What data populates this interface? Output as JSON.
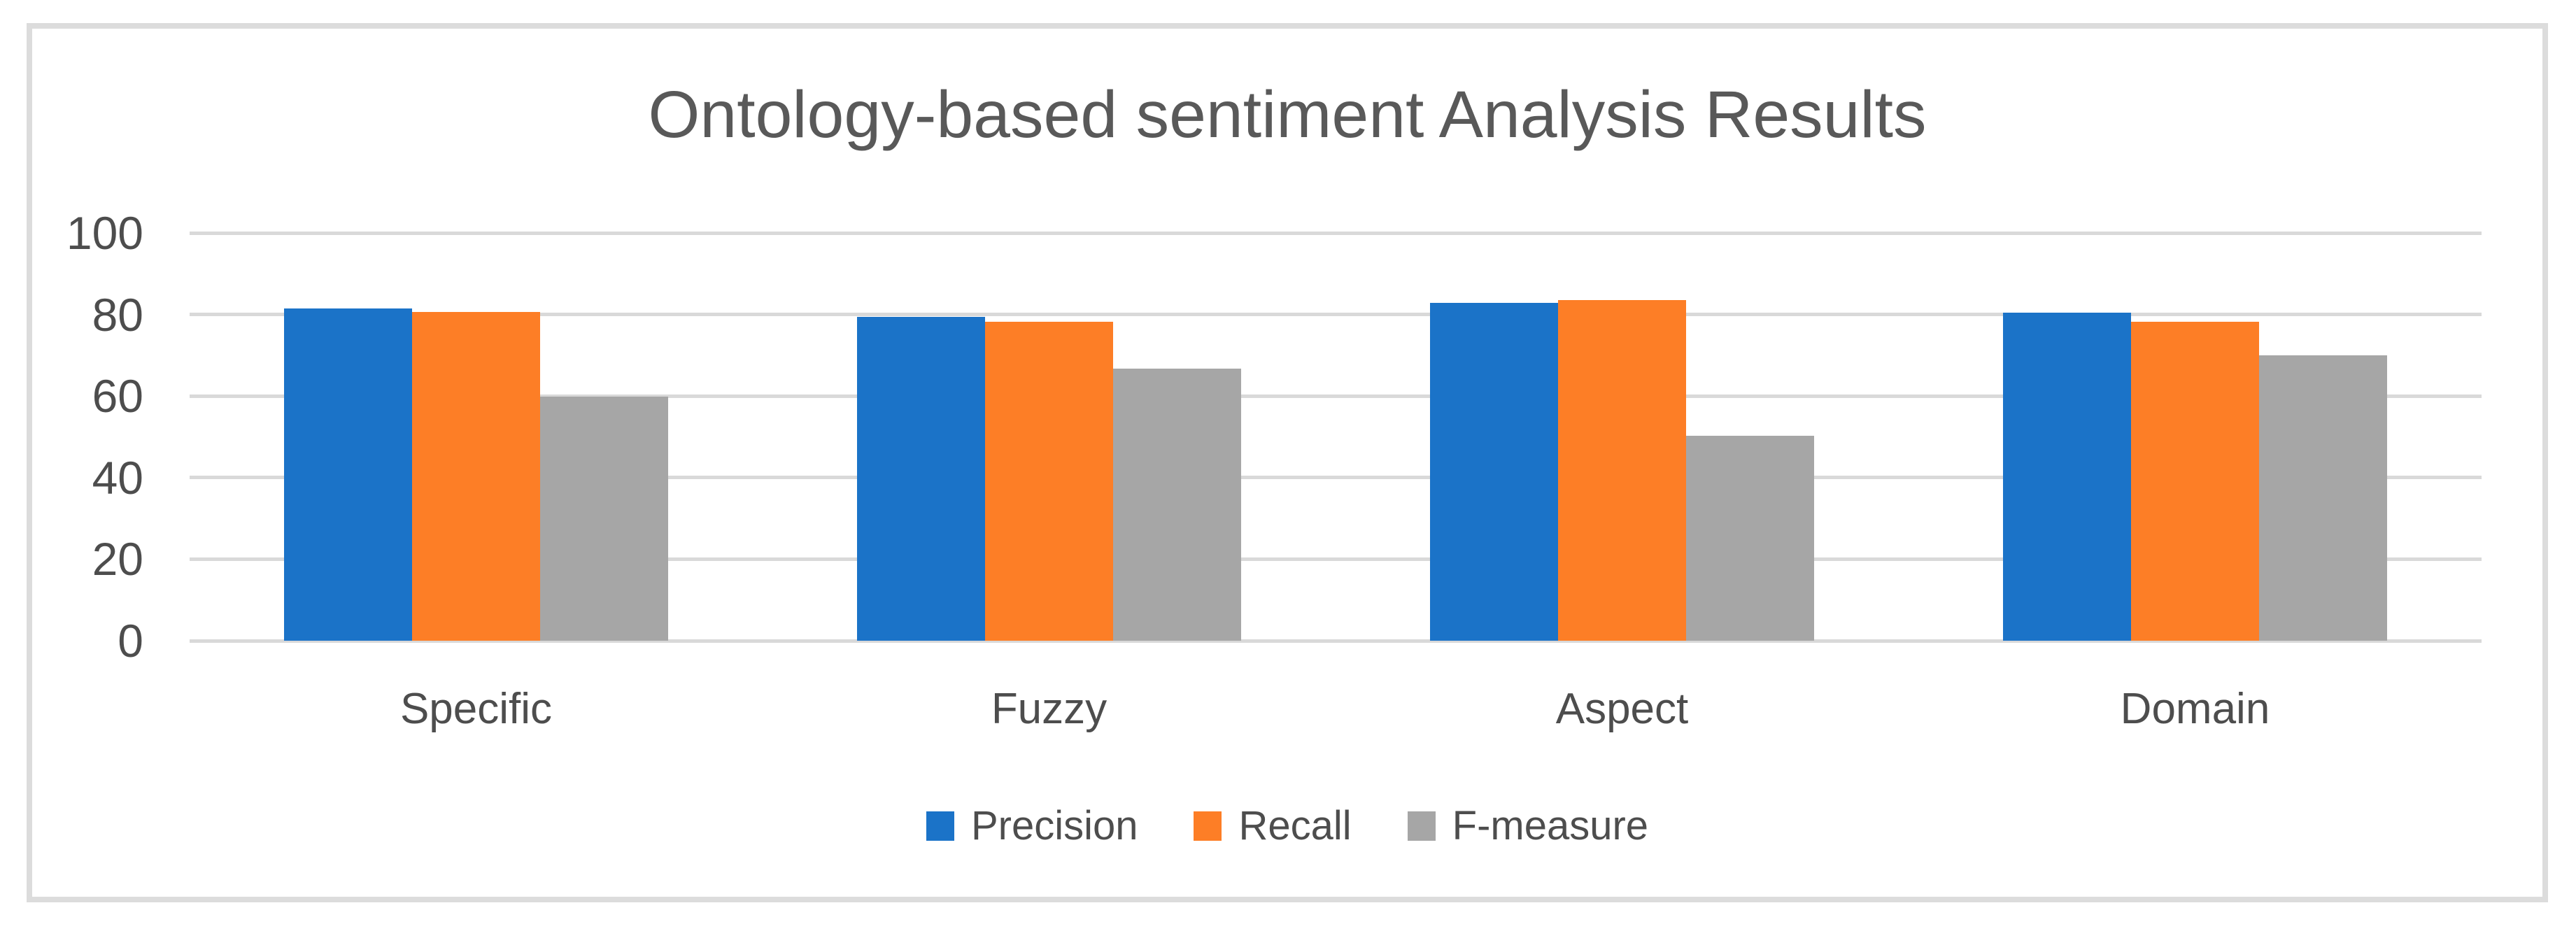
{
  "chart_data": {
    "type": "bar",
    "title": "Ontology-based sentiment Analysis Results",
    "categories": [
      "Specific",
      "Fuzzy",
      "Aspect",
      "Domain"
    ],
    "series": [
      {
        "name": "Precision",
        "color": "#1B73C8",
        "values": [
          81.5,
          79.4,
          82.8,
          80.5
        ]
      },
      {
        "name": "Recall",
        "color": "#FD7E26",
        "values": [
          80.6,
          78.3,
          83.6,
          78.2
        ]
      },
      {
        "name": "F-measure",
        "color": "#A6A6A6",
        "values": [
          59.8,
          66.8,
          50.2,
          70
        ]
      }
    ],
    "xlabel": "",
    "ylabel": "",
    "ylim": [
      0,
      100
    ],
    "y_ticks": [
      0,
      20,
      40,
      60,
      80,
      100
    ],
    "grid": true,
    "legend_position": "bottom"
  },
  "colors": {
    "background": "#ffffff",
    "frame_border": "#dcdcdc",
    "gridline": "#d9d9d9",
    "title_text": "#595959",
    "axis_text": "#4d4d4d",
    "legend_text": "#4d4d4d"
  }
}
